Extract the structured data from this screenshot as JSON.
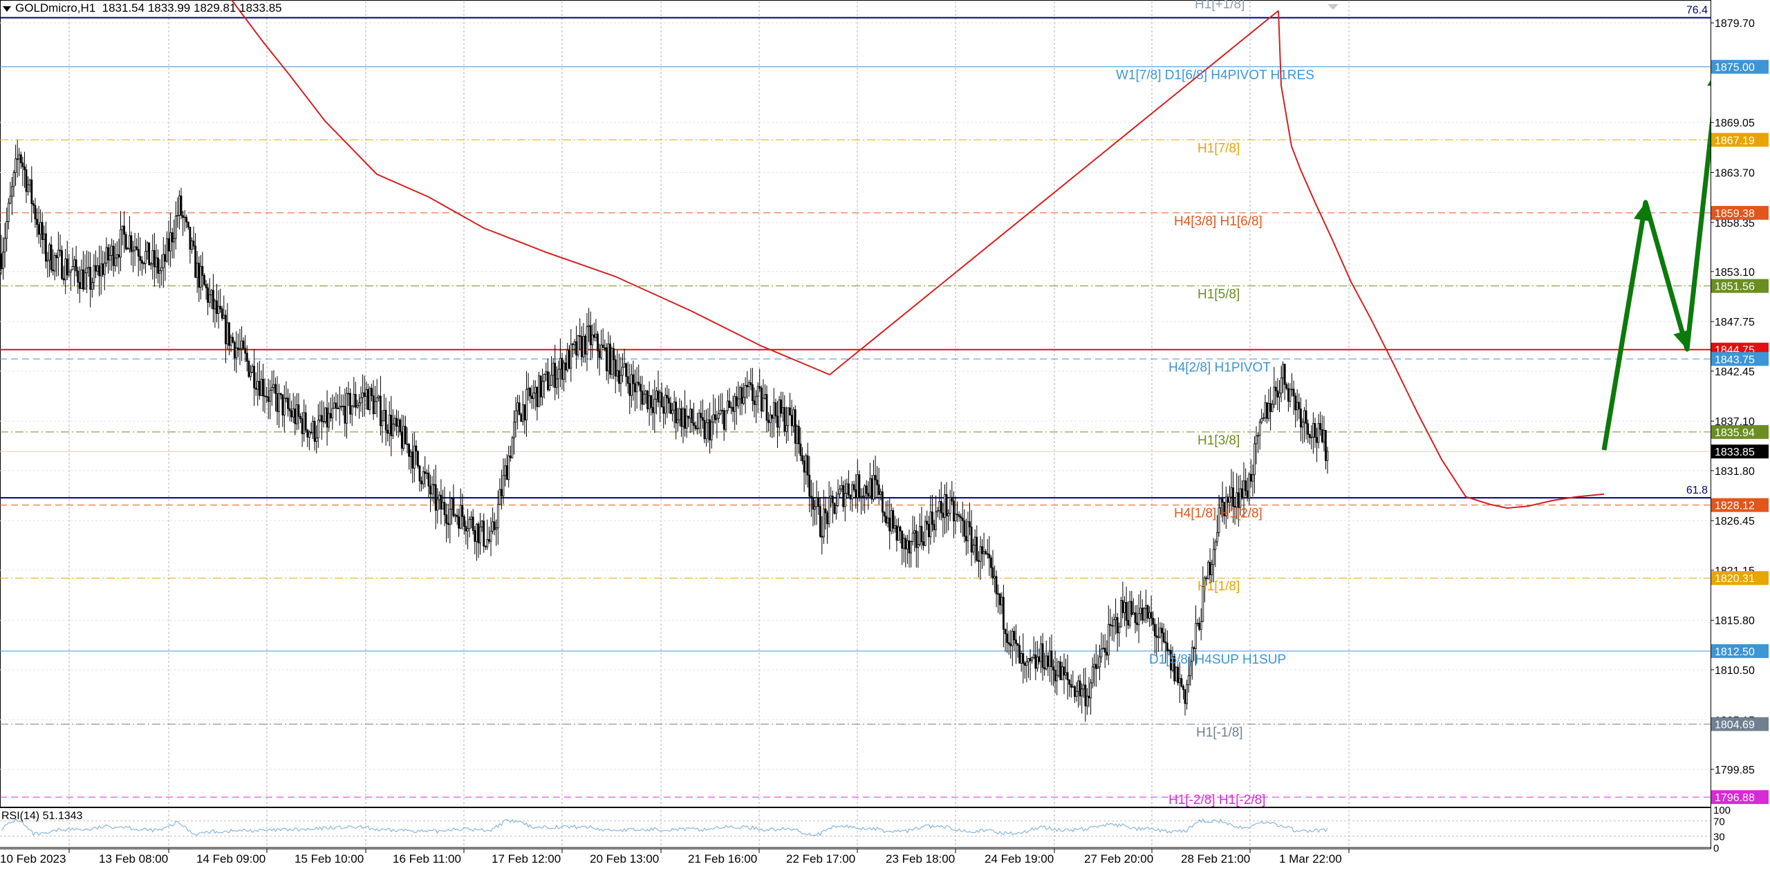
{
  "header": {
    "symbol_tf": "GOLDmicro,H1",
    "ohlc": "1831.54 1833.99 1829.81 1833.85"
  },
  "rsi": {
    "title": "RSI(14) 51.1343",
    "axis_labels": [
      "100",
      "70",
      "30",
      "0"
    ]
  },
  "price_axis": {
    "ticks": [
      "1879.70",
      "1869.05",
      "1863.70",
      "1858.35",
      "1853.10",
      "1847.75",
      "1842.45",
      "1837.10",
      "1831.80",
      "1826.45",
      "1821.15",
      "1815.80",
      "1810.50",
      "1805.15",
      "1799.85"
    ]
  },
  "time_axis": {
    "labels": [
      "10 Feb 2023",
      "13 Feb 08:00",
      "14 Feb 09:00",
      "15 Feb 10:00",
      "16 Feb 11:00",
      "17 Feb 12:00",
      "20 Feb 13:00",
      "21 Feb 16:00",
      "22 Feb 17:00",
      "23 Feb 18:00",
      "24 Feb 19:00",
      "27 Feb 20:00",
      "28 Feb 21:00",
      "1 Mar 22:00"
    ]
  },
  "levels": [
    {
      "price": 1880.25,
      "color": "#000080",
      "style": "solid",
      "w": 2,
      "tag": "",
      "label": "",
      "side_label": "76.4"
    },
    {
      "price": 1875.0,
      "color": "#3d95d6",
      "style": "solid",
      "w": 1,
      "tag": "1875.00",
      "label": "W1[7/8] D1[6/8] H4PIVOT H1RES",
      "side_label": ""
    },
    {
      "price": 1867.19,
      "color": "#e8a400",
      "style": "dashdot",
      "w": 1,
      "tag": "1867.19",
      "label": "H1[7/8]",
      "side_label": ""
    },
    {
      "price": 1859.38,
      "color": "#e2561b",
      "style": "dash",
      "w": 1,
      "tag": "1859.38",
      "label": "H4[3/8] H1[6/8]",
      "side_label": ""
    },
    {
      "price": 1851.56,
      "color": "#6b8e23",
      "style": "dashdot",
      "w": 1,
      "tag": "1851.56",
      "label": "H1[5/8]",
      "side_label": ""
    },
    {
      "price": 1844.75,
      "color": "#e01010",
      "style": "solid",
      "w": 2,
      "tag": "1844.75",
      "label": "",
      "side_label": ""
    },
    {
      "price": 1843.75,
      "color": "#3d95d6",
      "style": "dash",
      "w": 1,
      "tag": "1843.75",
      "label": "H4[2/8] H1PIVOT",
      "side_label": ""
    },
    {
      "price": 1835.94,
      "color": "#6b8e23",
      "style": "dashdot",
      "w": 1,
      "tag": "1835.94",
      "label": "H1[3/8]",
      "side_label": ""
    },
    {
      "price": 1828.9,
      "color": "#000080",
      "style": "solid",
      "w": 2,
      "tag": "",
      "label": "",
      "side_label": "61.8"
    },
    {
      "price": 1828.12,
      "color": "#e2561b",
      "style": "dash",
      "w": 1,
      "tag": "1828.12",
      "label": "H4[1/8] H1[2/8]",
      "side_label": ""
    },
    {
      "price": 1820.31,
      "color": "#e8a400",
      "style": "dashdot",
      "w": 1,
      "tag": "1820.31",
      "label": "H1[1/8]",
      "side_label": ""
    },
    {
      "price": 1812.5,
      "color": "#3d95d6",
      "style": "solid",
      "w": 1,
      "tag": "1812.50",
      "label": "D1[5/8] H4SUP H1SUP",
      "side_label": ""
    },
    {
      "price": 1804.69,
      "color": "#708090",
      "style": "dashdot",
      "w": 1,
      "tag": "1804.69",
      "label": "H1[-1/8]",
      "side_label": ""
    },
    {
      "price": 1796.88,
      "color": "#d62bd6",
      "style": "dash",
      "w": 1,
      "tag": "1796.88",
      "label": "H1[-2/8] H1[-2/8]",
      "side_label": ""
    }
  ],
  "top_label": "H1[+1/8]",
  "current_price": {
    "value": 1833.85,
    "tag": "1833.85",
    "color": "#000000"
  },
  "chart_data": {
    "type": "candlestick",
    "symbol": "GOLDmicro",
    "timeframe": "H1",
    "ylim": [
      1796.0,
      1882.0
    ],
    "start_price": 1855.0,
    "anchors": [
      [
        0,
        1855
      ],
      [
        10,
        1866
      ],
      [
        25,
        1855
      ],
      [
        50,
        1852
      ],
      [
        70,
        1857
      ],
      [
        90,
        1853
      ],
      [
        100,
        1860
      ],
      [
        110,
        1853
      ],
      [
        125,
        1847
      ],
      [
        150,
        1840
      ],
      [
        175,
        1836
      ],
      [
        190,
        1838
      ],
      [
        205,
        1840
      ],
      [
        230,
        1834
      ],
      [
        245,
        1828
      ],
      [
        260,
        1827
      ],
      [
        275,
        1824
      ],
      [
        290,
        1838
      ],
      [
        310,
        1842
      ],
      [
        330,
        1846
      ],
      [
        345,
        1843
      ],
      [
        360,
        1840
      ],
      [
        380,
        1838
      ],
      [
        395,
        1836
      ],
      [
        420,
        1840
      ],
      [
        435,
        1838
      ],
      [
        445,
        1837
      ],
      [
        460,
        1826
      ],
      [
        475,
        1830
      ],
      [
        490,
        1830
      ],
      [
        500,
        1826
      ],
      [
        510,
        1823
      ],
      [
        520,
        1826
      ],
      [
        530,
        1828
      ],
      [
        540,
        1826
      ],
      [
        555,
        1821
      ],
      [
        565,
        1815
      ],
      [
        575,
        1810
      ],
      [
        585,
        1812
      ],
      [
        600,
        1809
      ],
      [
        610,
        1808
      ],
      [
        620,
        1813
      ],
      [
        630,
        1817
      ],
      [
        645,
        1816
      ],
      [
        655,
        1812
      ],
      [
        665,
        1808
      ],
      [
        675,
        1818
      ],
      [
        685,
        1828
      ],
      [
        700,
        1830
      ],
      [
        710,
        1838
      ],
      [
        720,
        1842
      ],
      [
        730,
        1838
      ],
      [
        745,
        1834
      ]
    ],
    "moving_average": [
      [
        1849.0,
        1881.0
      ],
      [
        1853.0,
        1873.0
      ],
      [
        1868.0,
        1866.5
      ],
      [
        1881.0,
        1864.0
      ],
      [
        1902.0,
        1860.5
      ],
      [
        1927.0,
        1856.5
      ],
      [
        1954.0,
        1852.0
      ],
      [
        1983.0,
        1848.0
      ],
      [
        2017.0,
        1843.0
      ],
      [
        2050.0,
        1838.0
      ],
      [
        2085.0,
        1833.0
      ],
      [
        2120.0,
        1829.0
      ],
      [
        2155.0,
        1828.2
      ],
      [
        2180.0,
        1827.8
      ],
      [
        2210.0,
        1828.0
      ],
      [
        2245.0,
        1828.6
      ],
      [
        2280.0,
        1829.0
      ],
      [
        2320.0,
        1829.3
      ]
    ],
    "forecast_path": [
      [
        2320.0,
        1834.0
      ],
      [
        2380.0,
        1860.5
      ],
      [
        2440.0,
        1844.8
      ],
      [
        2485.0,
        1874.8
      ]
    ],
    "rsi_value": 51.1343,
    "grid": true
  }
}
